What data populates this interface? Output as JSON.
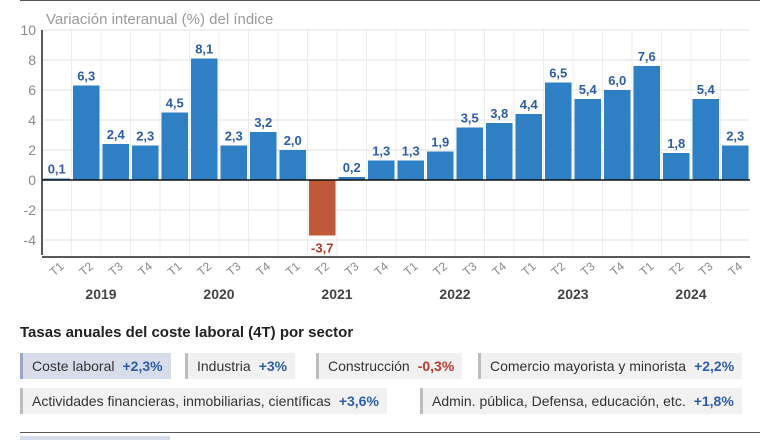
{
  "chart_data": {
    "type": "bar",
    "title": "Variación interanual (%) del índice",
    "ylim": [
      -5,
      10
    ],
    "yticks": [
      10,
      8,
      6,
      4,
      2,
      0,
      -2,
      -4
    ],
    "grid": true,
    "categories": [
      "T1",
      "T2",
      "T3",
      "T4",
      "T1",
      "T2",
      "T3",
      "T4",
      "T1",
      "T2",
      "T3",
      "T4",
      "T1",
      "T2",
      "T3",
      "T4",
      "T1",
      "T2",
      "T3",
      "T4",
      "T1",
      "T2",
      "T3",
      "T4"
    ],
    "years": [
      "2019",
      "2020",
      "2021",
      "2022",
      "2023",
      "2024"
    ],
    "values": [
      0.1,
      6.3,
      2.4,
      2.3,
      4.5,
      8.1,
      2.3,
      3.2,
      2.0,
      -3.7,
      0.2,
      1.3,
      1.3,
      1.9,
      3.5,
      3.8,
      4.4,
      6.5,
      5.4,
      6.0,
      7.6,
      1.8,
      5.4,
      2.3
    ],
    "data_labels": [
      "0,1",
      "6,3",
      "2,4",
      "2,3",
      "4,5",
      "8,1",
      "2,3",
      "3,2",
      "2,0",
      "-3,7",
      "0,2",
      "1,3",
      "1,3",
      "1,9",
      "3,5",
      "3,8",
      "4,4",
      "6,5",
      "5,4",
      "6,0",
      "7,6",
      "1,8",
      "5,4",
      "2,3"
    ],
    "colors": {
      "positive": "#2f7fc4",
      "negative": "#c0593a",
      "positive_label": "#2e5ea8",
      "negative_label": "#b03a2e"
    }
  },
  "sector_section": {
    "title": "Tasas anuales del coste laboral (4T) por sector",
    "chips": [
      {
        "label": "Coste laboral",
        "value": "+2,3%",
        "active": true
      },
      {
        "label": "Industria",
        "value": "+3%",
        "active": false
      },
      {
        "label": "Construcción",
        "value": "-0,3%",
        "active": false
      },
      {
        "label": "Comercio mayorista y minorista",
        "value": "+2,2%",
        "active": false
      },
      {
        "label": "Actividades financieras, inmobiliarias, científicas",
        "value": "+3,6%",
        "active": false
      },
      {
        "label": "Admin. pública, Defensa, educación, etc.",
        "value": "+1,8%",
        "active": false
      }
    ]
  }
}
